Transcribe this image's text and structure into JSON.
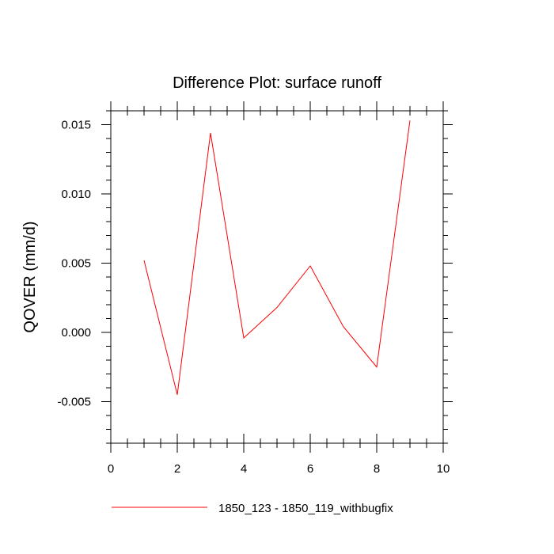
{
  "chart_data": {
    "type": "line",
    "title": "Difference Plot: surface runoff",
    "xlabel": "",
    "ylabel": "QOVER  (mm/d)",
    "xlim": [
      0,
      10
    ],
    "ylim": [
      -0.008,
      0.016
    ],
    "x_ticks": [
      0,
      2,
      4,
      6,
      8,
      10
    ],
    "x_tick_labels": [
      "0",
      "2",
      "4",
      "6",
      "8",
      "10"
    ],
    "y_ticks": [
      -0.005,
      0.0,
      0.005,
      0.01,
      0.015
    ],
    "y_tick_labels": [
      "-0.005",
      "0.000",
      "0.005",
      "0.010",
      "0.015"
    ],
    "grid": false,
    "legend_position": "bottom",
    "series": [
      {
        "name": "1850_123 - 1850_119_withbugfix",
        "color": "#ff0000",
        "x": [
          1,
          2,
          3,
          4,
          5,
          6,
          7,
          8,
          9
        ],
        "y": [
          0.0052,
          -0.0045,
          0.0144,
          -0.0004,
          0.0018,
          0.0048,
          0.0004,
          -0.0025,
          0.0153
        ]
      }
    ]
  }
}
